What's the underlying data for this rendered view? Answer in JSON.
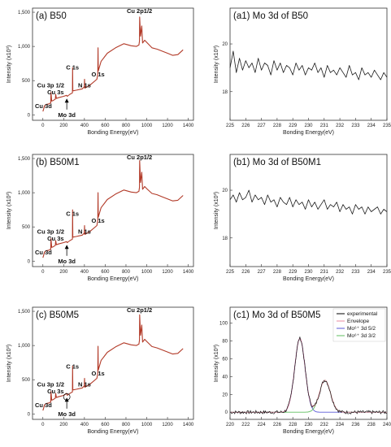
{
  "chart_data": [
    {
      "id": "a",
      "type": "line",
      "title": "(a) B50",
      "xlabel": "Bonding Energy(eV)",
      "ylabel": "Intensity (x10³)",
      "xlim": [
        -100,
        1450
      ],
      "ylim": [
        -80,
        1560
      ],
      "xticks": [
        "0",
        "200",
        "400",
        "600",
        "800",
        "1000",
        "1200",
        "1400"
      ],
      "yticks": [
        "0",
        "500",
        "1,000",
        "1,500"
      ],
      "annotations": [
        {
          "text": "Cu 2p1/2",
          "x": 930,
          "y": 1490
        },
        {
          "text": "C 1s",
          "x": 285,
          "y": 660
        },
        {
          "text": "N 1s",
          "x": 400,
          "y": 400
        },
        {
          "text": "O 1s",
          "x": 531,
          "y": 560
        },
        {
          "text": "Cu 3p 1/2",
          "x": 75,
          "y": 400
        },
        {
          "text": "Cu 3s",
          "x": 122,
          "y": 300
        },
        {
          "text": "Cu 3d",
          "x": 5,
          "y": 100
        },
        {
          "text": "Mo 3d",
          "x": 230,
          "y": -30,
          "arrow": true
        }
      ],
      "series": [
        {
          "color": "#b23a28",
          "x": [
            0,
            8,
            15,
            30,
            60,
            75,
            78,
            85,
            100,
            120,
            123,
            130,
            150,
            200,
            228,
            235,
            260,
            284,
            286,
            288,
            320,
            380,
            399,
            401,
            403,
            450,
            520,
            529,
            531,
            533,
            560,
            620,
            700,
            780,
            850,
            900,
            925,
            930,
            932,
            940,
            952,
            960,
            980,
            1000,
            1050,
            1100,
            1150,
            1200,
            1250,
            1300,
            1350
          ],
          "y": [
            50,
            90,
            130,
            150,
            160,
            175,
            330,
            200,
            210,
            230,
            300,
            240,
            250,
            270,
            285,
            270,
            300,
            320,
            690,
            350,
            360,
            380,
            410,
            520,
            390,
            430,
            520,
            600,
            980,
            640,
            780,
            900,
            980,
            1040,
            1010,
            1000,
            1020,
            1080,
            1430,
            1150,
            1300,
            1050,
            1090,
            1060,
            980,
            960,
            930,
            900,
            870,
            880,
            950
          ]
        }
      ]
    },
    {
      "id": "a1",
      "type": "line",
      "title": "(a1) Mo 3d of B50",
      "xlabel": "Bonding Energy(eV)",
      "ylabel": "Intensity (x10³)",
      "xlim": [
        225,
        235
      ],
      "ylim": [
        16.8,
        21.5
      ],
      "xticks": [
        "225",
        "226",
        "227",
        "228",
        "229",
        "230",
        "231",
        "232",
        "233",
        "234",
        "235"
      ],
      "yticks": [
        "18",
        "20"
      ],
      "series": [
        {
          "color": "#1a1a1a",
          "x": [
            225,
            225.2,
            225.4,
            225.6,
            225.8,
            226,
            226.2,
            226.4,
            226.6,
            226.8,
            227,
            227.2,
            227.4,
            227.6,
            227.8,
            228,
            228.2,
            228.4,
            228.6,
            228.8,
            229,
            229.2,
            229.4,
            229.6,
            229.8,
            230,
            230.2,
            230.4,
            230.6,
            230.8,
            231,
            231.2,
            231.4,
            231.6,
            231.8,
            232,
            232.2,
            232.4,
            232.6,
            232.8,
            233,
            233.2,
            233.4,
            233.6,
            233.8,
            234,
            234.2,
            234.4,
            234.6,
            234.8,
            235
          ],
          "y": [
            19.0,
            19.7,
            18.8,
            19.4,
            18.9,
            19.3,
            19.0,
            19.2,
            18.8,
            19.4,
            18.9,
            19.2,
            19.1,
            18.7,
            19.3,
            18.9,
            19.2,
            18.8,
            19.1,
            19.0,
            18.7,
            19.2,
            18.9,
            19.1,
            18.7,
            19.0,
            18.9,
            19.2,
            18.8,
            19.0,
            18.6,
            19.1,
            18.8,
            18.9,
            18.7,
            19.0,
            18.8,
            18.6,
            19.1,
            18.7,
            18.8,
            18.5,
            19.0,
            18.7,
            18.8,
            18.6,
            18.9,
            18.7,
            18.5,
            18.8,
            18.6
          ]
        }
      ]
    },
    {
      "id": "b",
      "type": "line",
      "title": "(b) B50M1",
      "xlabel": "Bonding Energy(eV)",
      "ylabel": "Intensity (x10³)",
      "xlim": [
        -100,
        1450
      ],
      "ylim": [
        -80,
        1560
      ],
      "xticks": [
        "0",
        "200",
        "400",
        "600",
        "800",
        "1000",
        "1200",
        "1400"
      ],
      "yticks": [
        "0",
        "500",
        "1,000",
        "1,500"
      ],
      "annotations": [
        {
          "text": "Cu 2p1/2",
          "x": 930,
          "y": 1490
        },
        {
          "text": "C 1s",
          "x": 285,
          "y": 660
        },
        {
          "text": "N 1s",
          "x": 400,
          "y": 400
        },
        {
          "text": "O 1s",
          "x": 531,
          "y": 560
        },
        {
          "text": "Cu 3p 1/2",
          "x": 75,
          "y": 400
        },
        {
          "text": "Cu 3s",
          "x": 122,
          "y": 300
        },
        {
          "text": "Cu 3d",
          "x": 5,
          "y": 100
        },
        {
          "text": "Mo 3d",
          "x": 230,
          "y": -30,
          "arrow": true
        }
      ],
      "series": [
        {
          "color": "#b23a28",
          "x": [
            0,
            8,
            15,
            30,
            60,
            75,
            78,
            85,
            100,
            120,
            123,
            130,
            150,
            200,
            228,
            235,
            260,
            284,
            286,
            288,
            320,
            380,
            399,
            401,
            403,
            450,
            520,
            529,
            531,
            533,
            560,
            620,
            700,
            780,
            850,
            900,
            925,
            930,
            932,
            940,
            952,
            960,
            980,
            1000,
            1050,
            1100,
            1150,
            1200,
            1250,
            1300,
            1350
          ],
          "y": [
            50,
            90,
            130,
            150,
            160,
            175,
            330,
            200,
            210,
            230,
            300,
            240,
            250,
            270,
            285,
            270,
            300,
            320,
            750,
            350,
            360,
            380,
            410,
            520,
            390,
            430,
            520,
            600,
            1000,
            640,
            780,
            900,
            980,
            1040,
            1010,
            1000,
            1020,
            1080,
            1470,
            1150,
            1300,
            1050,
            1090,
            1060,
            990,
            970,
            940,
            910,
            880,
            890,
            960
          ]
        }
      ]
    },
    {
      "id": "b1",
      "type": "line",
      "title": "(b1) Mo 3d of B50M1",
      "xlabel": "Bonding Energy(eV)",
      "ylabel": "Intensity (x10³)",
      "xlim": [
        225,
        235
      ],
      "ylim": [
        16.8,
        21.5
      ],
      "xticks": [
        "225",
        "226",
        "227",
        "228",
        "229",
        "230",
        "231",
        "232",
        "233",
        "234",
        "235"
      ],
      "yticks": [
        "18",
        "20"
      ],
      "series": [
        {
          "color": "#1a1a1a",
          "x": [
            225,
            225.2,
            225.4,
            225.6,
            225.8,
            226,
            226.2,
            226.4,
            226.6,
            226.8,
            227,
            227.2,
            227.4,
            227.6,
            227.8,
            228,
            228.2,
            228.4,
            228.6,
            228.8,
            229,
            229.2,
            229.4,
            229.6,
            229.8,
            230,
            230.2,
            230.4,
            230.6,
            230.8,
            231,
            231.2,
            231.4,
            231.6,
            231.8,
            232,
            232.2,
            232.4,
            232.6,
            232.8,
            233,
            233.2,
            233.4,
            233.6,
            233.8,
            234,
            234.2,
            234.4,
            234.6,
            234.8,
            235
          ],
          "y": [
            19.6,
            19.8,
            19.5,
            19.9,
            19.6,
            19.7,
            20.0,
            19.5,
            19.8,
            19.6,
            19.7,
            19.4,
            19.8,
            19.5,
            19.6,
            19.3,
            19.7,
            19.5,
            19.4,
            19.7,
            19.3,
            19.6,
            19.4,
            19.5,
            19.2,
            19.6,
            19.3,
            19.5,
            19.2,
            19.4,
            19.6,
            19.2,
            19.4,
            19.3,
            19.5,
            19.1,
            19.4,
            19.2,
            19.3,
            19.0,
            19.4,
            19.2,
            19.3,
            19.0,
            19.3,
            19.1,
            19.2,
            19.3,
            19.0,
            19.2,
            19.1
          ]
        }
      ]
    },
    {
      "id": "c",
      "type": "line",
      "title": "(c) B50M5",
      "xlabel": "Bonding Energy(eV)",
      "ylabel": "Intensity (x10³)",
      "xlim": [
        -100,
        1450
      ],
      "ylim": [
        -80,
        1560
      ],
      "xticks": [
        "0",
        "200",
        "400",
        "600",
        "800",
        "1000",
        "1200",
        "1400"
      ],
      "yticks": [
        "0",
        "500",
        "1,000",
        "1,500"
      ],
      "annotations": [
        {
          "text": "Cu 2p1/2",
          "x": 930,
          "y": 1490
        },
        {
          "text": "C 1s",
          "x": 285,
          "y": 660
        },
        {
          "text": "N 1s",
          "x": 400,
          "y": 400
        },
        {
          "text": "O 1s",
          "x": 531,
          "y": 560
        },
        {
          "text": "Cu 3p 1/2",
          "x": 75,
          "y": 400
        },
        {
          "text": "Cu 3s",
          "x": 122,
          "y": 300
        },
        {
          "text": "Cu 3d",
          "x": 5,
          "y": 100
        },
        {
          "text": "Mo 3d",
          "x": 230,
          "y": -30,
          "arrow": true,
          "circle": true
        }
      ],
      "series": [
        {
          "color": "#b23a28",
          "x": [
            0,
            8,
            15,
            30,
            60,
            75,
            78,
            85,
            100,
            120,
            123,
            130,
            150,
            200,
            228,
            235,
            260,
            284,
            286,
            288,
            320,
            380,
            399,
            401,
            403,
            450,
            520,
            529,
            531,
            533,
            560,
            620,
            700,
            780,
            850,
            900,
            925,
            930,
            932,
            940,
            952,
            960,
            980,
            1000,
            1050,
            1100,
            1150,
            1200,
            1250,
            1300,
            1350
          ],
          "y": [
            50,
            90,
            130,
            150,
            160,
            175,
            330,
            200,
            210,
            230,
            300,
            240,
            250,
            270,
            300,
            270,
            300,
            320,
            700,
            350,
            360,
            380,
            410,
            520,
            390,
            430,
            520,
            600,
            990,
            640,
            780,
            900,
            980,
            1040,
            1010,
            1000,
            1020,
            1080,
            1450,
            1150,
            1300,
            1050,
            1090,
            1060,
            985,
            965,
            935,
            905,
            875,
            885,
            955
          ]
        }
      ]
    },
    {
      "id": "c1",
      "type": "line",
      "title": "(c1) Mo 3d of B50M5",
      "xlabel": "Bonding Energy(eV)",
      "ylabel": "Intensity (x10³)",
      "xlim": [
        220,
        240
      ],
      "ylim": [
        -8,
        118
      ],
      "xticks": [
        "220",
        "222",
        "224",
        "226",
        "228",
        "230",
        "232",
        "234",
        "236",
        "238",
        "240"
      ],
      "yticks": [
        "0",
        "20",
        "40",
        "60",
        "80",
        "100"
      ],
      "legend": {
        "position": "top-right",
        "entries": [
          {
            "label": "experimental",
            "color": "#000000"
          },
          {
            "label": "Envelope",
            "color": "#e88ba0"
          },
          {
            "label": "Mo⁶⁺ 3d 5/2",
            "color": "#5a5ad8"
          },
          {
            "label": "Mo⁶⁺ 3d 3/2",
            "color": "#5fbf5f"
          }
        ]
      },
      "peaks": [
        {
          "name": "Mo⁶⁺ 3d 5/2",
          "center": 228.9,
          "height": 83,
          "fwhm": 1.55,
          "color": "#5a5ad8"
        },
        {
          "name": "Mo⁶⁺ 3d 3/2",
          "center": 232.1,
          "height": 36,
          "fwhm": 1.65,
          "color": "#5fbf5f"
        }
      ]
    }
  ]
}
